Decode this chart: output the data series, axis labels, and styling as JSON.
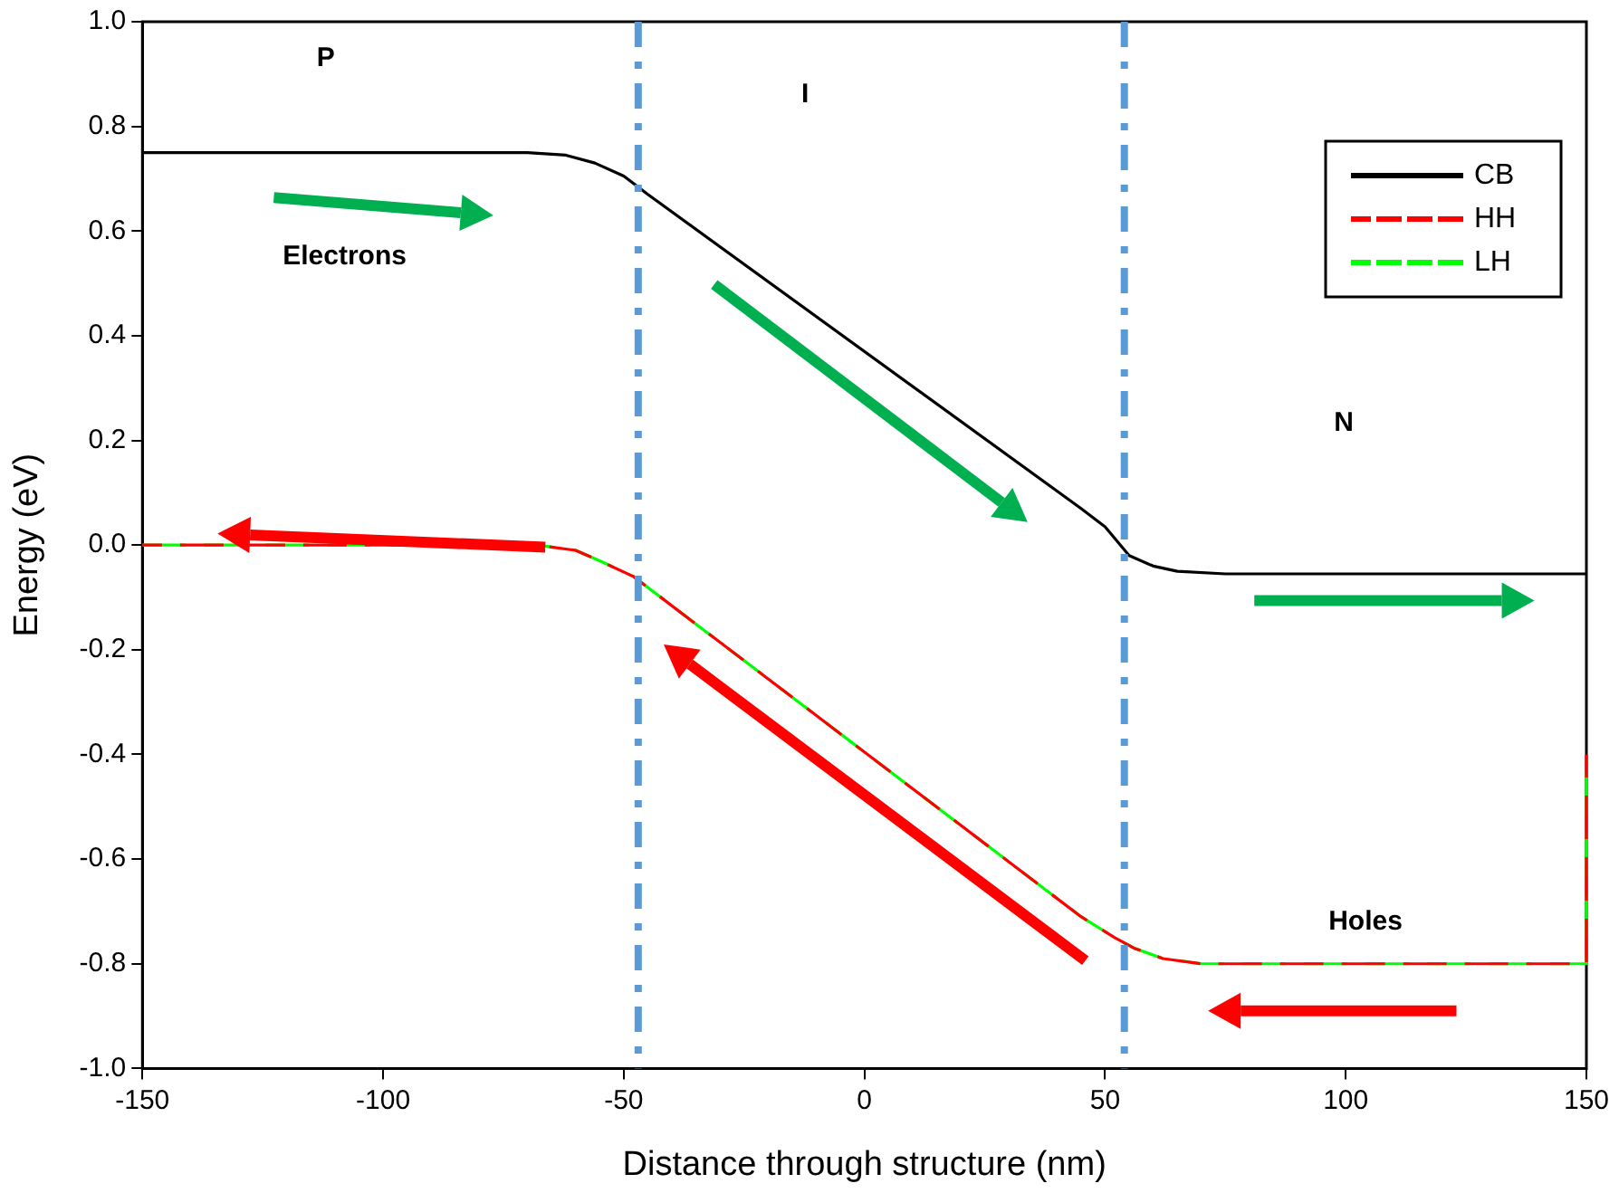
{
  "chart_data": {
    "type": "line",
    "xlabel": "Distance through structure (nm)",
    "ylabel": "Energy (eV)",
    "xlim": [
      -150,
      150
    ],
    "xticks": [
      -150,
      -100,
      -50,
      0,
      50,
      100,
      150
    ],
    "ylim": [
      -1.0,
      1.0
    ],
    "yticks": [
      {
        "value": -1,
        "label": "-1.0"
      },
      {
        "value": -0.8,
        "label": "-0.8"
      },
      {
        "value": -0.6,
        "label": "-0.6"
      },
      {
        "value": -0.4,
        "label": "-0.4"
      },
      {
        "value": -0.2,
        "label": "-0.2"
      },
      {
        "value": 0,
        "label": "0.0"
      },
      {
        "value": 0.2,
        "label": "0.2"
      },
      {
        "value": 0.4,
        "label": "0.4"
      },
      {
        "value": 0.6,
        "label": "0.6"
      },
      {
        "value": 0.8,
        "label": "0.8"
      },
      {
        "value": 1,
        "label": "1.0"
      }
    ],
    "grid": false,
    "legend": "top right",
    "marker": "none",
    "series": [
      {
        "name": "CB",
        "color": "#000000",
        "line_style": "solid",
        "x": [
          -150,
          -70,
          -62,
          -56,
          -50,
          -45,
          45,
          50,
          55,
          60,
          65,
          75,
          150
        ],
        "values": [
          0.75,
          0.75,
          0.745,
          0.73,
          0.705,
          0.67,
          0.07,
          0.035,
          -0.02,
          -0.04,
          -0.05,
          -0.055,
          -0.055
        ]
      },
      {
        "name": "HH",
        "color": "#ff0000",
        "line_style": "dashed",
        "x": [
          -150,
          -68,
          -60,
          -55,
          -48,
          45,
          52,
          56,
          62,
          70,
          150,
          150
        ],
        "values": [
          0,
          0,
          -0.01,
          -0.03,
          -0.06,
          -0.71,
          -0.75,
          -0.77,
          -0.79,
          -0.8,
          -0.8,
          -0.4
        ]
      },
      {
        "name": "LH",
        "color": "#00ff00",
        "line_style": "dashed",
        "x": [
          -150,
          -68,
          -60,
          -55,
          -48,
          45,
          52,
          56,
          62,
          70,
          150,
          150
        ],
        "values": [
          0,
          0,
          -0.01,
          -0.03,
          -0.06,
          -0.71,
          -0.75,
          -0.77,
          -0.79,
          -0.8,
          -0.8,
          -0.4
        ]
      }
    ],
    "ref_lines": [
      {
        "axis": "x",
        "value": -47,
        "color": "#5b9bd5",
        "line_style": "dashed"
      },
      {
        "axis": "x",
        "value": 54,
        "color": "#5b9bd5",
        "line_style": "dashed"
      }
    ],
    "annotations": [
      "P",
      "I",
      "N",
      "Electrons",
      "Holes"
    ]
  }
}
